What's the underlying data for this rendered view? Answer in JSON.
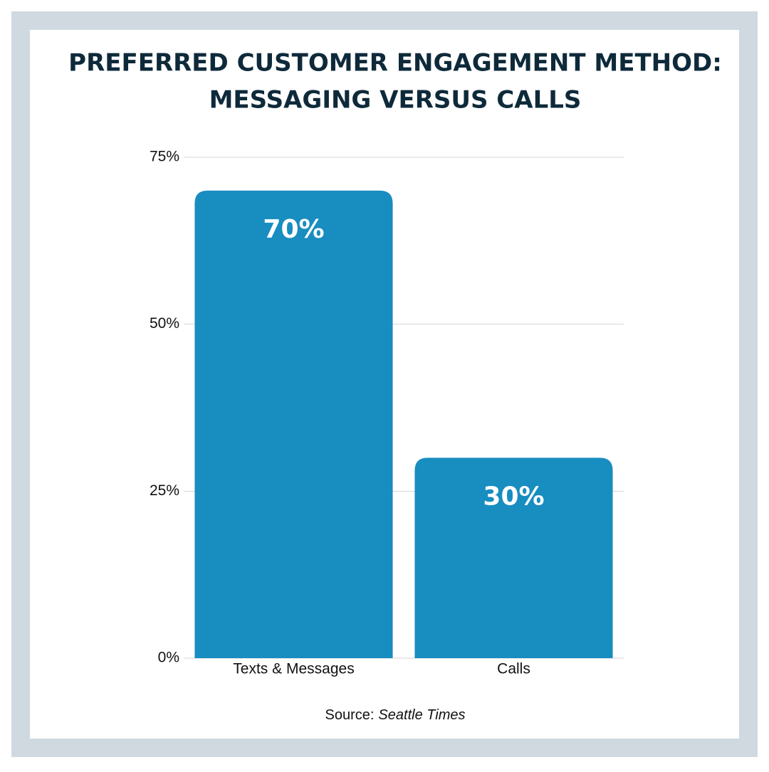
{
  "chart_data": {
    "type": "bar",
    "title": [
      "PREFERRED CUSTOMER ENGAGEMENT METHOD:",
      "MESSAGING VERSUS CALLS"
    ],
    "categories": [
      "Texts & Messages",
      "Calls"
    ],
    "values": [
      70,
      30
    ],
    "value_labels": [
      "70%",
      "30%"
    ],
    "color": "#188dc0",
    "ylim": [
      0,
      75
    ],
    "yticks": [
      {
        "value": 0,
        "label": "0%"
      },
      {
        "value": 25,
        "label": "25%"
      },
      {
        "value": 50,
        "label": "50%"
      },
      {
        "value": 75,
        "label": "75%"
      }
    ],
    "grid": true,
    "source": [
      "Source:",
      "Seattle Times"
    ]
  }
}
